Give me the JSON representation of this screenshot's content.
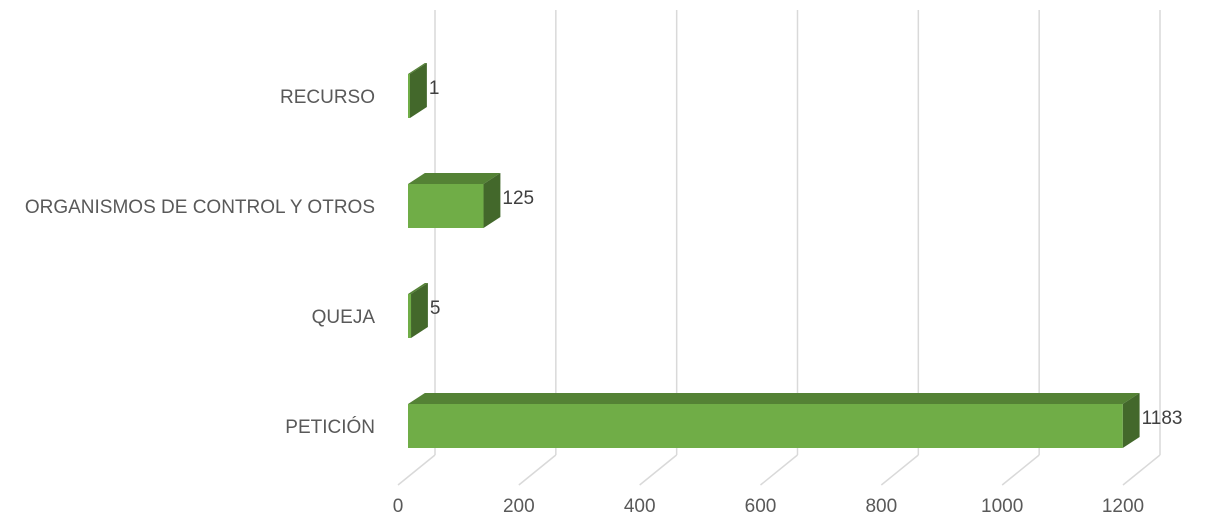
{
  "chart_data": {
    "type": "bar",
    "orientation": "horizontal",
    "style": "3d",
    "categories": [
      "RECURSO",
      "ORGANISMOS DE CONTROL Y OTROS",
      "QUEJA",
      "PETICIÓN"
    ],
    "values": [
      1,
      125,
      5,
      1183
    ],
    "data_labels": [
      "1",
      "125",
      "5",
      "1183"
    ],
    "xlim": [
      0,
      1200
    ],
    "x_ticks": [
      "0",
      "200",
      "400",
      "600",
      "800",
      "1000",
      "1200"
    ],
    "grid": true,
    "legend": "none",
    "colors": {
      "bar_front": "#70ad47",
      "bar_top": "#548235",
      "bar_side": "#43682b",
      "grid": "#d9d9d9"
    }
  }
}
